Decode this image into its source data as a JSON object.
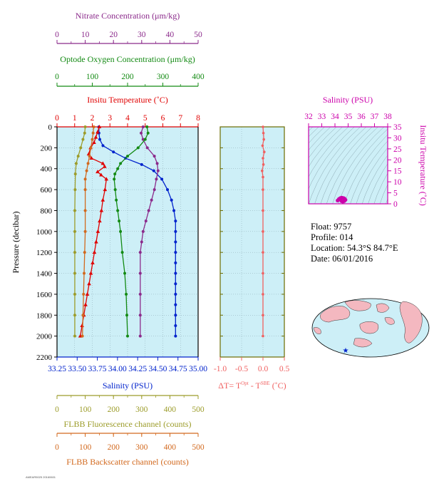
{
  "float_info": {
    "float_label": "Float:",
    "float_id": "9757",
    "profile_label": "Profile:",
    "profile_id": "014",
    "location_label": "Location:",
    "location": "54.3°S 84.7°E",
    "date_label": "Date:",
    "date": "06/01/2016"
  },
  "footer_code": "AMEAR5025 20160601",
  "chart_data": [
    {
      "type": "line",
      "panel": "main-profile",
      "ylabel": "Pressure (decibar)",
      "y_range": [
        0,
        2200
      ],
      "y_inverted": true,
      "y_ticks": [
        0,
        200,
        400,
        600,
        800,
        1000,
        1200,
        1400,
        1600,
        1800,
        2000,
        2200
      ],
      "axes": [
        {
          "key": "nitrate",
          "label": "Nitrate Concentration (μm/kg)",
          "range": [
            0,
            50
          ],
          "ticks": [
            0,
            10,
            20,
            30,
            40,
            50
          ],
          "color": "#8b2a8b"
        },
        {
          "key": "oxygen",
          "label": "Optode Oxygen Concentration (μm/kg)",
          "range": [
            0,
            400
          ],
          "ticks": [
            0,
            100,
            200,
            300,
            400
          ],
          "color": "#138a13"
        },
        {
          "key": "temperature",
          "label": "Insitu Temperature (˚C)",
          "range": [
            0,
            8
          ],
          "ticks": [
            0,
            1,
            2,
            3,
            4,
            5,
            6,
            7,
            8
          ],
          "color": "#e00000"
        },
        {
          "key": "salinity",
          "label": "Salinity (PSU)",
          "range": [
            33.25,
            35.0
          ],
          "ticks": [
            "33.25",
            "33.50",
            "33.75",
            "34.00",
            "34.25",
            "34.50",
            "34.75",
            "35.00"
          ],
          "color": "#0022cc"
        },
        {
          "key": "fluorescence",
          "label": "FLBB Fluorescence channel (counts)",
          "range": [
            0,
            500
          ],
          "ticks": [
            0,
            100,
            200,
            300,
            400,
            500
          ],
          "color": "#9c9c2a"
        },
        {
          "key": "backscatter",
          "label": "FLBB Backscatter channel (counts)",
          "range": [
            0,
            500
          ],
          "ticks": [
            0,
            100,
            200,
            300,
            400,
            500
          ],
          "color": "#d2691e"
        }
      ],
      "series": [
        {
          "axis": "salinity",
          "marker": "circle",
          "color": "#0022cc",
          "points": [
            [
              33.77,
              0
            ],
            [
              33.77,
              60
            ],
            [
              33.78,
              120
            ],
            [
              33.82,
              180
            ],
            [
              33.95,
              240
            ],
            [
              34.1,
              300
            ],
            [
              34.3,
              360
            ],
            [
              34.45,
              420
            ],
            [
              34.55,
              500
            ],
            [
              34.62,
              600
            ],
            [
              34.67,
              700
            ],
            [
              34.7,
              800
            ],
            [
              34.72,
              900
            ],
            [
              34.72,
              1000
            ],
            [
              34.72,
              1100
            ],
            [
              34.72,
              1200
            ],
            [
              34.72,
              1300
            ],
            [
              34.72,
              1400
            ],
            [
              34.72,
              1500
            ],
            [
              34.72,
              1600
            ],
            [
              34.72,
              1700
            ],
            [
              34.72,
              1800
            ],
            [
              34.72,
              1900
            ],
            [
              34.72,
              2000
            ]
          ]
        },
        {
          "axis": "nitrate",
          "marker": "circle",
          "color": "#8b2a8b",
          "points": [
            [
              30.5,
              0
            ],
            [
              29.8,
              60
            ],
            [
              30.5,
              120
            ],
            [
              32,
              200
            ],
            [
              34.5,
              280
            ],
            [
              35.5,
              350
            ],
            [
              35.8,
              420
            ],
            [
              35.2,
              500
            ],
            [
              34.5,
              600
            ],
            [
              33.5,
              700
            ],
            [
              32.5,
              800
            ],
            [
              31.5,
              900
            ],
            [
              30.5,
              1000
            ],
            [
              30,
              1100
            ],
            [
              29.5,
              1200
            ],
            [
              29.5,
              1400
            ],
            [
              29.5,
              1600
            ],
            [
              29.5,
              1800
            ],
            [
              29.5,
              2000
            ]
          ]
        },
        {
          "axis": "oxygen",
          "marker": "circle",
          "color": "#138a13",
          "points": [
            [
              255,
              0
            ],
            [
              258,
              60
            ],
            [
              250,
              120
            ],
            [
              230,
              200
            ],
            [
              200,
              280
            ],
            [
              180,
              350
            ],
            [
              172,
              400
            ],
            [
              164,
              450
            ],
            [
              162,
              500
            ],
            [
              165,
              600
            ],
            [
              168,
              700
            ],
            [
              172,
              800
            ],
            [
              176,
              900
            ],
            [
              180,
              1000
            ],
            [
              185,
              1200
            ],
            [
              192,
              1400
            ],
            [
              196,
              1600
            ],
            [
              198,
              1800
            ],
            [
              200,
              2000
            ]
          ]
        },
        {
          "axis": "temperature",
          "marker": "triangle",
          "color": "#e00000",
          "points": [
            [
              2.4,
              0
            ],
            [
              2.3,
              50
            ],
            [
              2.2,
              100
            ],
            [
              2.1,
              150
            ],
            [
              1.9,
              200
            ],
            [
              1.8,
              260
            ],
            [
              1.95,
              300
            ],
            [
              2.6,
              350
            ],
            [
              2.7,
              380
            ],
            [
              2.3,
              430
            ],
            [
              2.5,
              460
            ],
            [
              2.8,
              500
            ],
            [
              2.72,
              600
            ],
            [
              2.6,
              700
            ],
            [
              2.52,
              800
            ],
            [
              2.42,
              900
            ],
            [
              2.32,
              1000
            ],
            [
              2.22,
              1100
            ],
            [
              2.12,
              1200
            ],
            [
              2.02,
              1300
            ],
            [
              1.92,
              1400
            ],
            [
              1.82,
              1500
            ],
            [
              1.72,
              1600
            ],
            [
              1.62,
              1700
            ],
            [
              1.52,
              1800
            ],
            [
              1.42,
              1900
            ],
            [
              1.32,
              2000
            ]
          ]
        },
        {
          "axis": "fluorescence",
          "marker": "circle",
          "color": "#9c9c2a",
          "points": [
            [
              100,
              0
            ],
            [
              98,
              60
            ],
            [
              92,
              120
            ],
            [
              84,
              200
            ],
            [
              75,
              280
            ],
            [
              68,
              350
            ],
            [
              65,
              450
            ],
            [
              64,
              600
            ],
            [
              63,
              800
            ],
            [
              63,
              1000
            ],
            [
              63,
              1200
            ],
            [
              63,
              1400
            ],
            [
              63,
              1600
            ],
            [
              63,
              1800
            ],
            [
              63,
              2000
            ]
          ]
        },
        {
          "axis": "backscatter",
          "marker": "circle",
          "color": "#d2691e",
          "points": [
            [
              130,
              0
            ],
            [
              128,
              60
            ],
            [
              125,
              120
            ],
            [
              120,
              200
            ],
            [
              115,
              280
            ],
            [
              110,
              350
            ],
            [
              105,
              420
            ],
            [
              100,
              500
            ],
            [
              100,
              600
            ],
            [
              100,
              800
            ],
            [
              100,
              1000
            ],
            [
              98,
              1200
            ],
            [
              96,
              1400
            ],
            [
              94,
              1600
            ],
            [
              92,
              1800
            ],
            [
              90,
              2000
            ]
          ]
        }
      ]
    },
    {
      "type": "line",
      "panel": "delta-temperature",
      "xlabel": "ΔT= T",
      "x_range": [
        -1.0,
        0.5
      ],
      "x_ticks": [
        "-1.0",
        "-0.5",
        "0.0",
        "0.5"
      ],
      "color": "#f06060",
      "series": [
        {
          "name": "dT",
          "points": [
            [
              0.0,
              0
            ],
            [
              0.01,
              60
            ],
            [
              0.02,
              120
            ],
            [
              -0.01,
              180
            ],
            [
              0.03,
              240
            ],
            [
              0.0,
              300
            ],
            [
              0.01,
              360
            ],
            [
              -0.02,
              420
            ],
            [
              0.0,
              480
            ],
            [
              0.0,
              600
            ],
            [
              0.0,
              800
            ],
            [
              0.0,
              1000
            ],
            [
              0.0,
              1200
            ],
            [
              0.0,
              1400
            ],
            [
              0.0,
              1600
            ],
            [
              0.0,
              1800
            ],
            [
              0.0,
              2000
            ]
          ]
        }
      ]
    },
    {
      "type": "scatter",
      "panel": "ts-diagram",
      "title": "Salinity (PSU)",
      "ylabel": "Insitu Temperature (˚C)",
      "x_range": [
        32,
        38
      ],
      "x_ticks": [
        32,
        33,
        34,
        35,
        36,
        37,
        38
      ],
      "y_range": [
        0,
        35
      ],
      "y_ticks": [
        0,
        5,
        10,
        15,
        20,
        25,
        30,
        35
      ],
      "color": "#cc00aa",
      "points": [
        [
          34.2,
          1.5
        ],
        [
          34.3,
          2.2
        ],
        [
          34.4,
          2.6
        ],
        [
          34.5,
          2.8
        ],
        [
          34.6,
          2.7
        ],
        [
          34.7,
          2.5
        ],
        [
          34.75,
          2.2
        ],
        [
          34.72,
          1.6
        ],
        [
          34.72,
          1.3
        ],
        [
          34.6,
          1.0
        ],
        [
          34.8,
          1.8
        ],
        [
          34.5,
          1.2
        ],
        [
          34.4,
          1.9
        ]
      ]
    }
  ]
}
